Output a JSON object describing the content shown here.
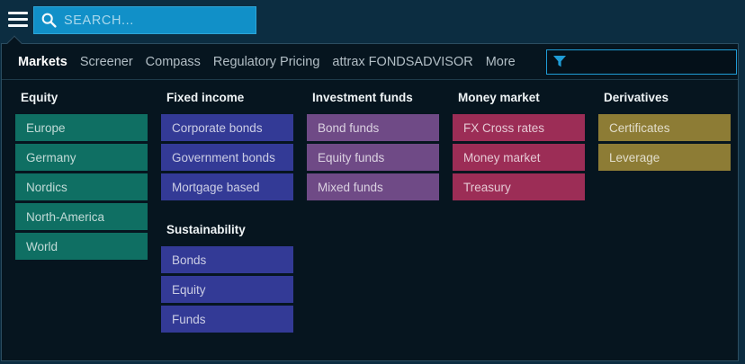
{
  "topbar": {
    "search_placeholder": "SEARCH..."
  },
  "nav": {
    "items": [
      {
        "label": "Markets",
        "active": true,
        "chevron": false
      },
      {
        "label": "Screener",
        "active": false,
        "chevron": false
      },
      {
        "label": "Compass",
        "active": false,
        "chevron": false
      },
      {
        "label": "Regulatory Pricing",
        "active": false,
        "chevron": false
      },
      {
        "label": "attrax FONDSADVISOR",
        "active": false,
        "chevron": false
      },
      {
        "label": "More",
        "active": false,
        "chevron": true
      }
    ],
    "filter_value": ""
  },
  "menu": {
    "columns": [
      {
        "sections": [
          {
            "title": "Equity",
            "chevron": false,
            "button_color": "#0f6f63",
            "items": [
              "Europe",
              "Germany",
              "Nordics",
              "North-America",
              "World"
            ]
          }
        ]
      },
      {
        "sections": [
          {
            "title": "Fixed income",
            "chevron": false,
            "button_color": "#333a96",
            "items": [
              "Corporate bonds",
              "Government bonds",
              "Mortgage based"
            ]
          },
          {
            "title": "Sustainability",
            "chevron": false,
            "button_color": "#333a96",
            "items": [
              "Bonds",
              "Equity",
              "Funds"
            ]
          }
        ]
      },
      {
        "sections": [
          {
            "title": "Investment funds",
            "chevron": false,
            "button_color": "#6f4a86",
            "items": [
              "Bond funds",
              "Equity funds",
              "Mixed funds"
            ]
          }
        ]
      },
      {
        "sections": [
          {
            "title": "Money market",
            "chevron": false,
            "button_color": "#9c2d56",
            "items": [
              "FX Cross rates",
              "Money market",
              "Treasury"
            ]
          }
        ]
      },
      {
        "sections": [
          {
            "title": "Derivatives",
            "chevron": true,
            "button_color": "#8d7c35",
            "items": [
              "Certificates",
              "Leverage"
            ]
          }
        ]
      }
    ]
  },
  "colors": {
    "topbar_bg": "#0c2d41",
    "panel_bg": "#06151f",
    "panel_border": "#2c4d60",
    "search_bg": "#1190c8",
    "accent_cyan": "#1f9cd6",
    "equity_teal": "#0f6f63",
    "fixed_income_indigo": "#333a96",
    "investment_funds_purple": "#6f4a86",
    "money_market_crimson": "#9c2d56",
    "derivatives_olive": "#8d7c35"
  }
}
